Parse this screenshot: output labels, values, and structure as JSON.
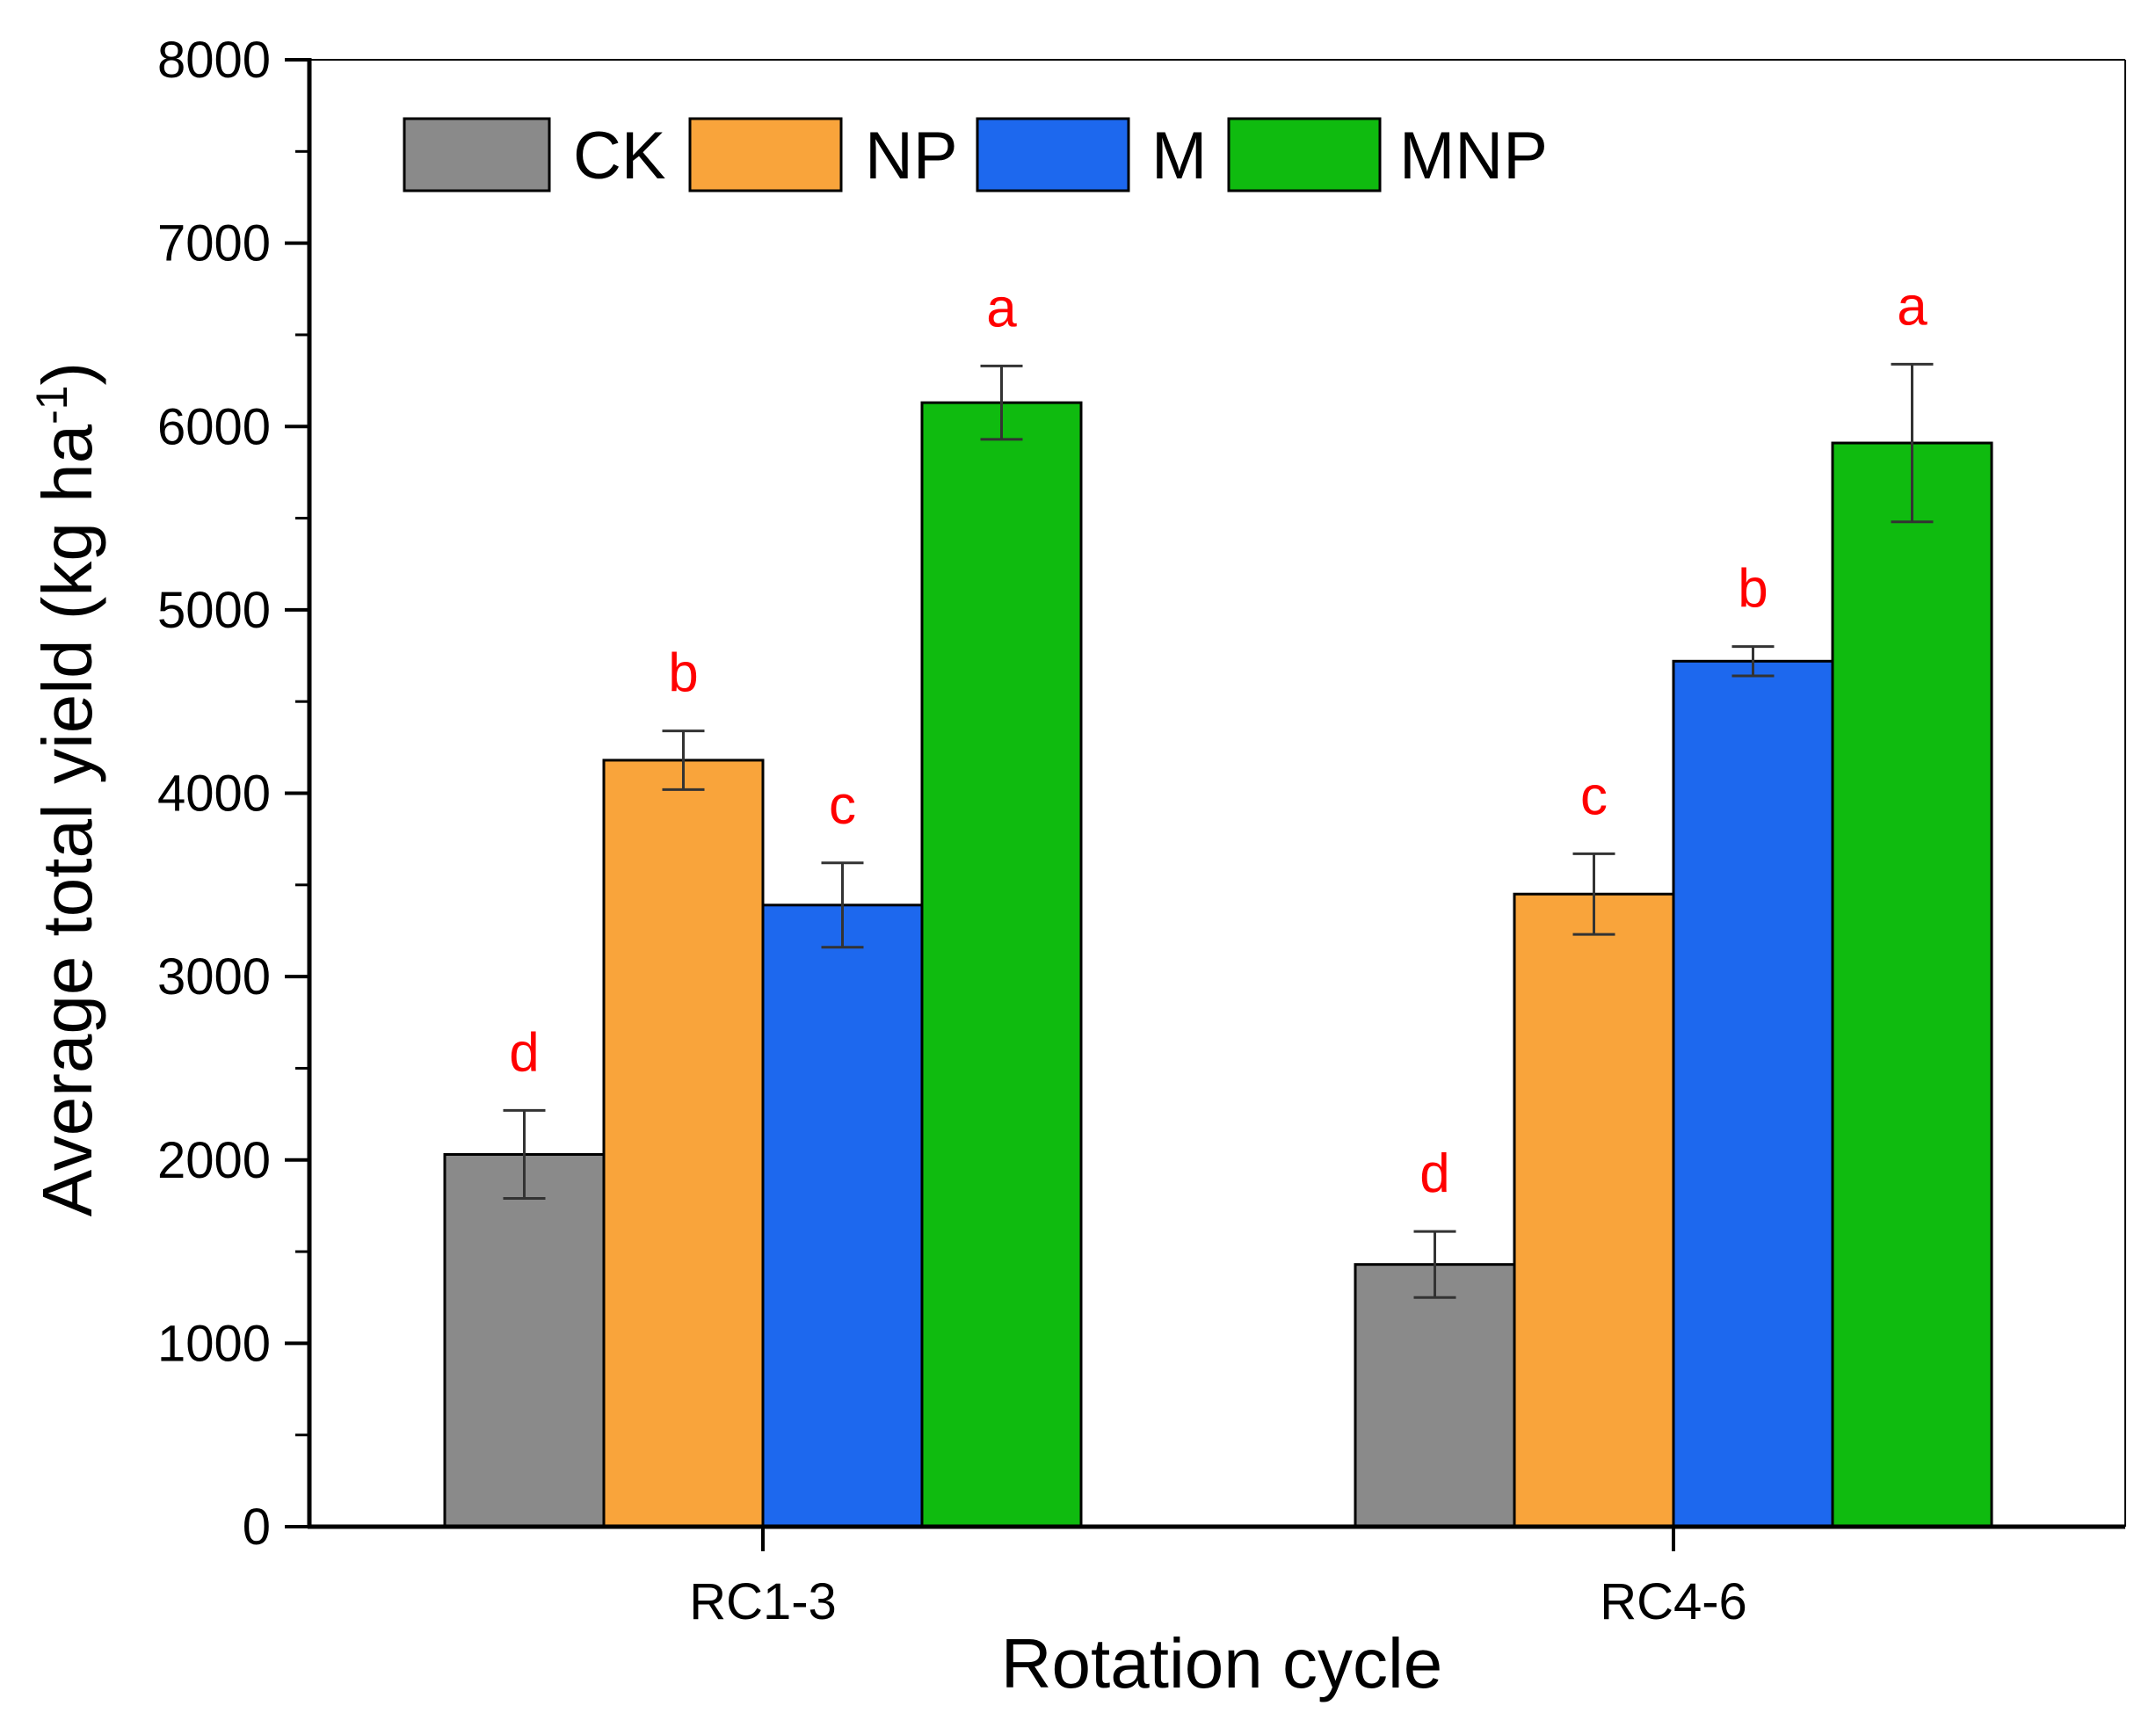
{
  "chart_data": {
    "type": "bar",
    "title": "",
    "xlabel": "Rotation cycle",
    "ylabel_main": "Average total yield (kg ha",
    "ylabel_sup": "-1",
    "ylabel_close": ")",
    "ylim": [
      0,
      8000
    ],
    "yticks": [
      0,
      1000,
      2000,
      3000,
      4000,
      5000,
      6000,
      7000,
      8000
    ],
    "yticks_labels": [
      "0",
      "1000",
      "2000",
      "3000",
      "4000",
      "5000",
      "6000",
      "7000",
      "8000"
    ],
    "categories": [
      "RC1-3",
      "RC4-6"
    ],
    "legend_position": "top-left",
    "series": [
      {
        "name": "CK",
        "color": "#8a8a8a",
        "values": [
          2030,
          1430
        ],
        "errors": [
          240,
          180
        ],
        "letters": [
          "d",
          "d"
        ]
      },
      {
        "name": "NP",
        "color": "#f9a43b",
        "values": [
          4180,
          3450
        ],
        "errors": [
          160,
          220
        ],
        "letters": [
          "b",
          "c"
        ]
      },
      {
        "name": "M",
        "color": "#1d68ee",
        "values": [
          3390,
          4720
        ],
        "errors": [
          230,
          80
        ],
        "letters": [
          "c",
          "b"
        ]
      },
      {
        "name": "MNP",
        "color": "#0fbb0f",
        "values": [
          6130,
          5910
        ],
        "errors": [
          200,
          430
        ],
        "letters": [
          "a",
          "a"
        ]
      }
    ]
  }
}
